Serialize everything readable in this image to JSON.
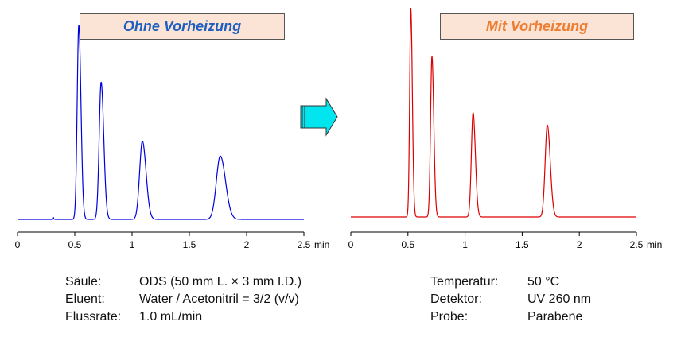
{
  "colors": {
    "left_trace": "#0000dd",
    "right_trace": "#dd0000",
    "arrow_fill": "#00e5ee",
    "title_bg": "#fbe4d5"
  },
  "icons": {
    "arrow": "arrow-right-icon"
  },
  "chart_data": [
    {
      "type": "line",
      "title": "Ohne Vorheizung",
      "xlim": [
        0,
        2.5
      ],
      "x_ticks": [
        "0",
        "0.5",
        "1",
        "1.5",
        "2",
        "2.5"
      ],
      "x_unit": "min",
      "ylim": [
        0,
        1
      ],
      "grid": false,
      "series": [
        {
          "peaks": [
            {
              "t": 0.31,
              "h": 0.01,
              "w": 0.004
            },
            {
              "t": 0.535,
              "h": 0.92,
              "w": 0.014
            },
            {
              "t": 0.73,
              "h": 0.65,
              "w": 0.017
            },
            {
              "t": 1.09,
              "h": 0.37,
              "w": 0.024
            },
            {
              "t": 1.77,
              "h": 0.3,
              "w": 0.034
            }
          ]
        }
      ]
    },
    {
      "type": "line",
      "title": "Mit Vorheizung",
      "xlim": [
        0,
        2.5
      ],
      "x_ticks": [
        "0",
        "0.5",
        "1",
        "1.5",
        "2",
        "2.5"
      ],
      "x_unit": "min",
      "ylim": [
        0,
        1
      ],
      "grid": false,
      "series": [
        {
          "peaks": [
            {
              "t": 0.525,
              "h": 1.0,
              "w": 0.01
            },
            {
              "t": 0.71,
              "h": 0.77,
              "w": 0.012
            },
            {
              "t": 1.07,
              "h": 0.5,
              "w": 0.015
            },
            {
              "t": 1.72,
              "h": 0.44,
              "w": 0.019
            }
          ]
        }
      ]
    }
  ],
  "conditions_left": [
    {
      "label": "Säule:",
      "value": "ODS (50 mm L. × 3 mm I.D.)"
    },
    {
      "label": "Eluent:",
      "value": "Water / Acetonitril = 3/2 (v/v)"
    },
    {
      "label": "Flussrate:",
      "value": "1.0 mL/min"
    }
  ],
  "conditions_right": [
    {
      "label": "Temperatur:",
      "value": "50 °C"
    },
    {
      "label": "Detektor:",
      "value": "UV 260 nm"
    },
    {
      "label": "Probe:",
      "value": "Parabene"
    }
  ]
}
